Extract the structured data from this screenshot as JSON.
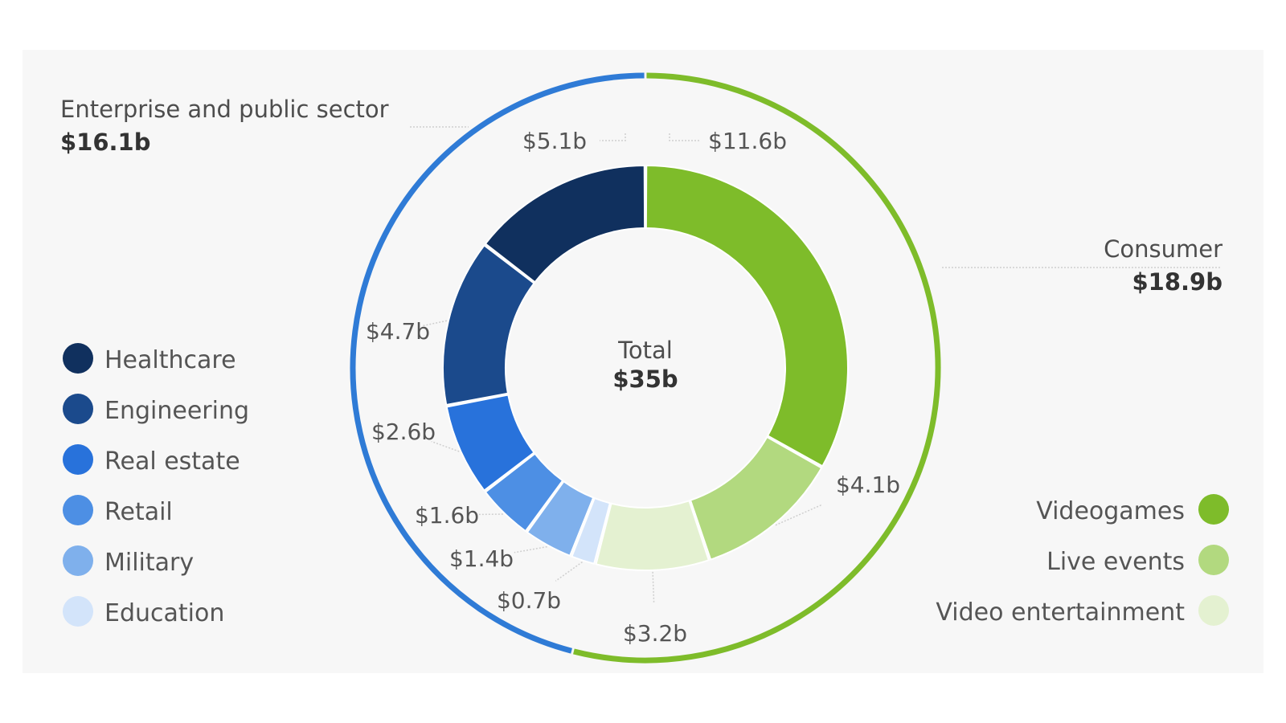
{
  "chart_data": {
    "type": "donut",
    "center": {
      "label": "Total",
      "value": "$35b"
    },
    "groups": [
      {
        "name": "Enterprise and public sector",
        "value_label": "$16.1b",
        "value": 16.1,
        "color": "#2f7bd6"
      },
      {
        "name": "Consumer",
        "value_label": "$18.9b",
        "value": 18.9,
        "color": "#7ebc2a"
      }
    ],
    "segments": [
      {
        "name": "Videogames",
        "group": "Consumer",
        "value": 11.6,
        "label": "$11.6b",
        "color": "#7ebc2a"
      },
      {
        "name": "Live events",
        "group": "Consumer",
        "value": 4.1,
        "label": "$4.1b",
        "color": "#b2d97f"
      },
      {
        "name": "Video entertainment",
        "group": "Consumer",
        "value": 3.2,
        "label": "$3.2b",
        "color": "#e4f1d1"
      },
      {
        "name": "Education",
        "group": "Enterprise and public sector",
        "value": 0.7,
        "label": "$0.7b",
        "color": "#d3e4fa"
      },
      {
        "name": "Military",
        "group": "Enterprise and public sector",
        "value": 1.4,
        "label": "$1.4b",
        "color": "#7fb0ec"
      },
      {
        "name": "Retail",
        "group": "Enterprise and public sector",
        "value": 1.6,
        "label": "$1.6b",
        "color": "#4d8fe4"
      },
      {
        "name": "Real estate",
        "group": "Enterprise and public sector",
        "value": 2.6,
        "label": "$2.6b",
        "color": "#2872db"
      },
      {
        "name": "Engineering",
        "group": "Enterprise and public sector",
        "value": 4.7,
        "label": "$4.7b",
        "color": "#1b4a8c"
      },
      {
        "name": "Healthcare",
        "group": "Enterprise and public sector",
        "value": 5.1,
        "label": "$5.1b",
        "color": "#10305e"
      }
    ],
    "legend_left": [
      "Healthcare",
      "Engineering",
      "Real estate",
      "Retail",
      "Military",
      "Education"
    ],
    "legend_right": [
      "Videogames",
      "Live events",
      "Video entertainment"
    ]
  }
}
